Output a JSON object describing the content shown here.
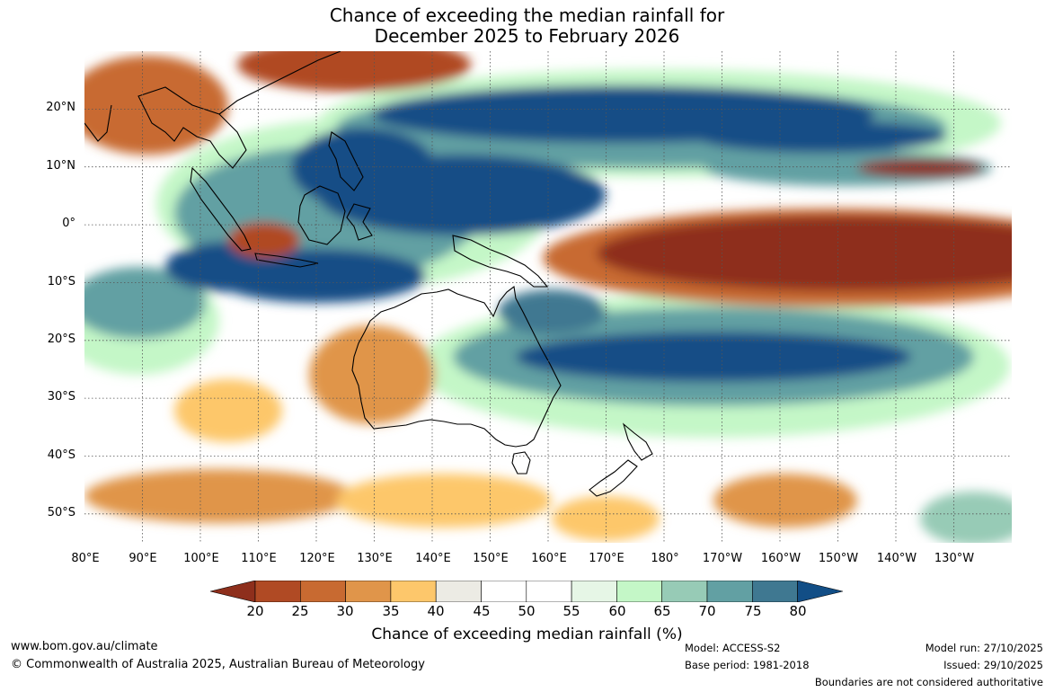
{
  "title": {
    "line1": "Chance of exceeding the median rainfall for",
    "line2": "December 2025 to February 2026"
  },
  "map": {
    "lat_labels": [
      "20°N",
      "10°N",
      "0°",
      "10°S",
      "20°S",
      "30°S",
      "40°S",
      "50°S"
    ],
    "lon_labels": [
      "80°E",
      "90°E",
      "100°E",
      "110°E",
      "120°E",
      "130°E",
      "140°E",
      "150°E",
      "160°E",
      "170°E",
      "180°",
      "170°W",
      "160°W",
      "150°W",
      "140°W",
      "130°W"
    ],
    "lat_range": [
      -55,
      30
    ],
    "lon_range": [
      80,
      240
    ]
  },
  "colorbar": {
    "label": "Chance of exceeding median rainfall (%)",
    "ticks": [
      "20",
      "25",
      "30",
      "35",
      "40",
      "45",
      "50",
      "55",
      "60",
      "65",
      "70",
      "75",
      "80"
    ],
    "colors": [
      "#8e2f1c",
      "#b04a24",
      "#c86a31",
      "#e0954a",
      "#fdc76b",
      "#ecebe4",
      "#ffffff",
      "#ffffff",
      "#e6f6e6",
      "#c4f7c7",
      "#97cbb6",
      "#62a0a3",
      "#3f7891",
      "#124e86"
    ]
  },
  "footer": {
    "website": "www.bom.gov.au/climate",
    "copyright": "© Commonwealth of Australia 2025, Australian Bureau of Meteorology",
    "model": "Model: ACCESS-S2",
    "base_period": "Base period: 1981-2018",
    "model_run": "Model run: 27/10/2025",
    "issued": "Issued: 29/10/2025",
    "disclaimer": "Boundaries are not considered authoritative"
  }
}
